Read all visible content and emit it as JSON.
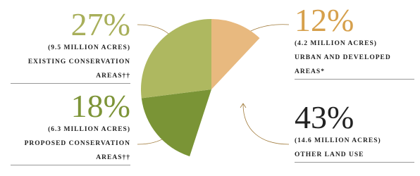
{
  "chart_data": {
    "type": "pie",
    "categories": [
      "URBAN AND DEVELOPED AREAS*",
      "OTHER LAND USE",
      "PROPOSED CONSERVATION AREAS††",
      "EXISTING CONSERVATION AREAS††"
    ],
    "values": [
      12,
      43,
      18,
      27
    ],
    "value_labels": [
      "12%",
      "43%",
      "18%",
      "27%"
    ],
    "subtitles": [
      "(4.2 MILLION ACRES)",
      "(14.6 MILLION ACRES)",
      "(6.3 MILLION ACRES)",
      "(9.5 MILLION ACRES)"
    ],
    "colors": [
      "#e8b97f",
      "transparent",
      "#7a9436",
      "#aeb860"
    ],
    "label_colors": [
      "#d6a04c",
      "#222222",
      "#7d9438",
      "#a8af5a"
    ]
  }
}
